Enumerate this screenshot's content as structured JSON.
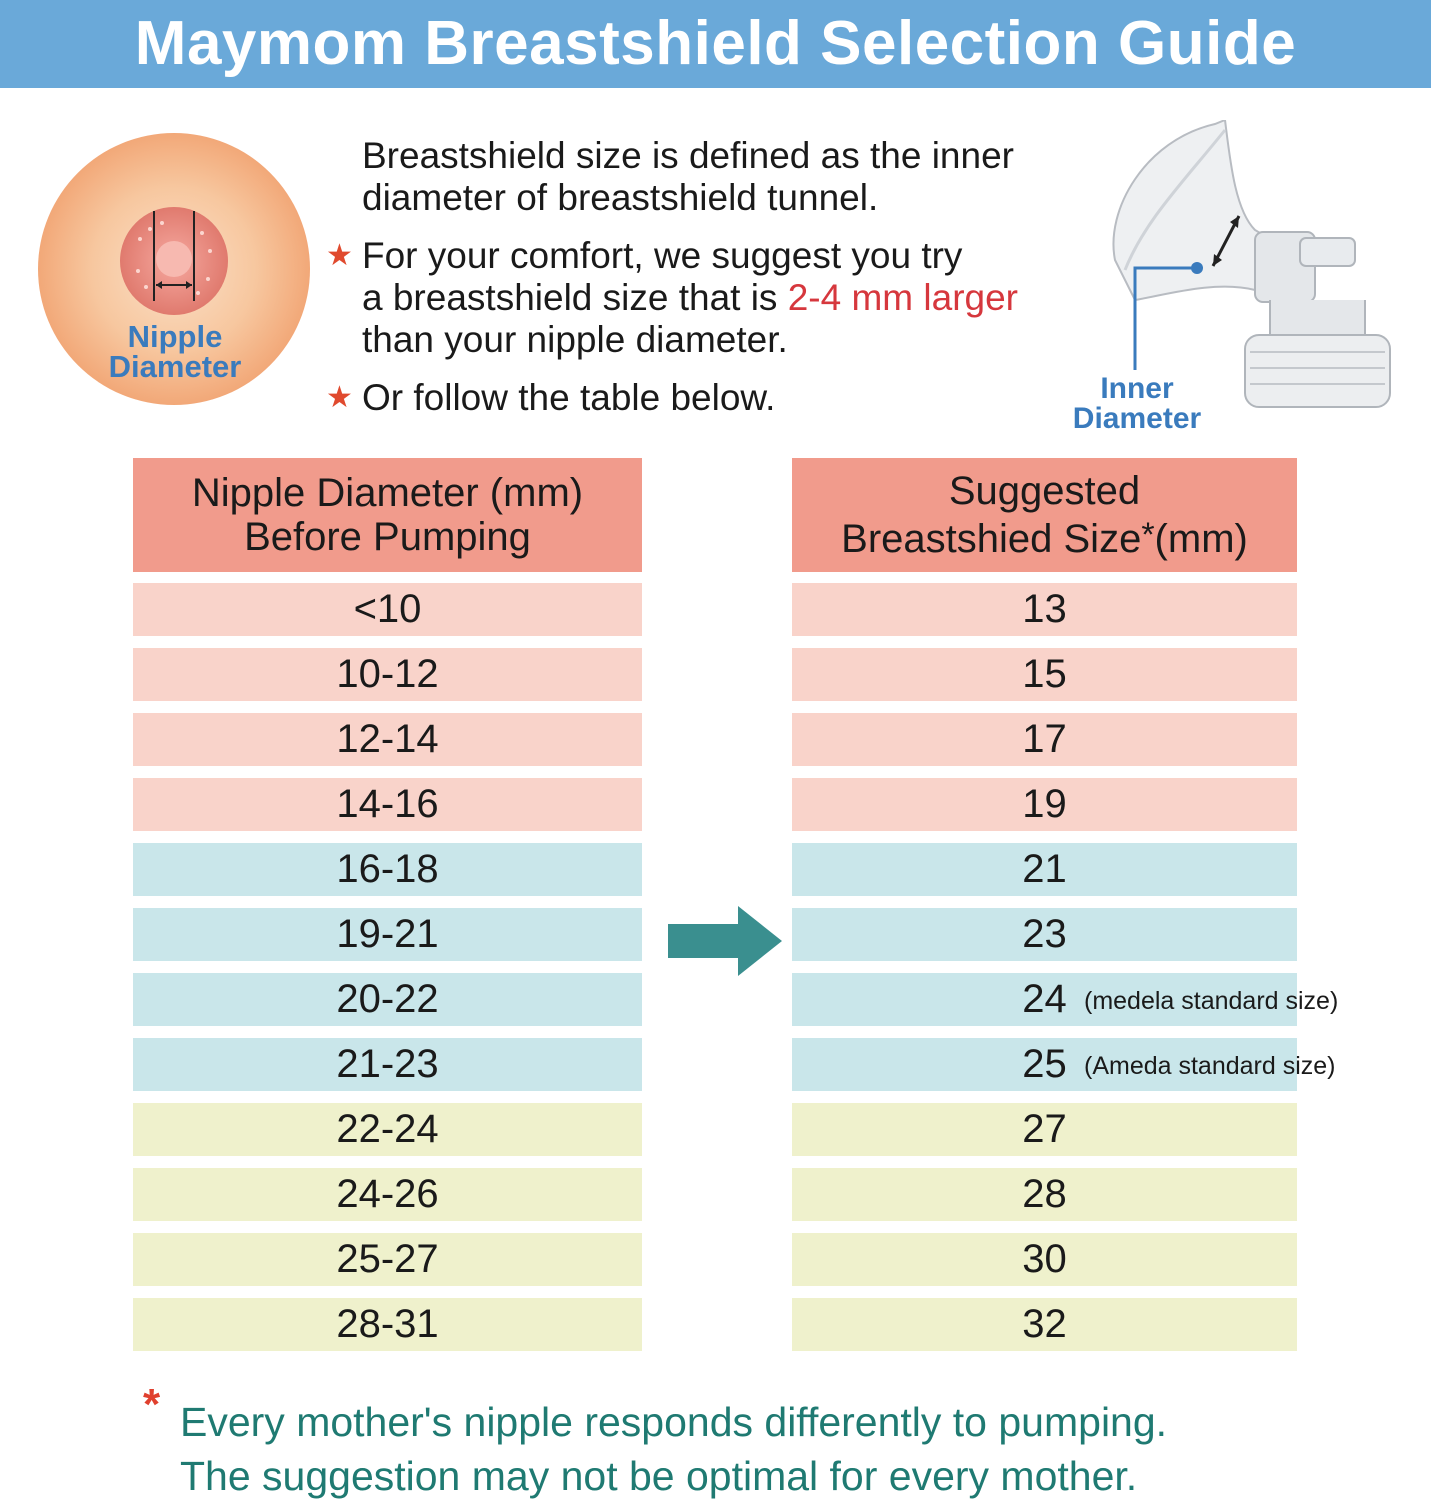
{
  "title": "Maymom Breastshield Selection Guide",
  "nipple_label": [
    "Nipple",
    "Diameter"
  ],
  "inner_label": [
    "Inner",
    "Diameter"
  ],
  "intro": {
    "line1": "Breastshield size is defined as the inner",
    "line2": "diameter of breastshield tunnel.",
    "bullet1_a": "For your comfort, we suggest you try",
    "bullet1_b": "a breastshield size that is ",
    "bullet1_highlight": "2-4 mm larger",
    "bullet1_c": "than your nipple diameter.",
    "bullet2": "Or follow the table below.",
    "star": "★"
  },
  "table": {
    "left_header": [
      "Nipple Diameter (mm)",
      "Before Pumping"
    ],
    "right_header": [
      "Suggested",
      "Breastshied Size",
      "*",
      "(mm)"
    ],
    "rows": [
      {
        "nipple": "<10",
        "size": "13",
        "group": "pink",
        "note": ""
      },
      {
        "nipple": "10-12",
        "size": "15",
        "group": "pink",
        "note": ""
      },
      {
        "nipple": "12-14",
        "size": "17",
        "group": "pink",
        "note": ""
      },
      {
        "nipple": "14-16",
        "size": "19",
        "group": "pink",
        "note": ""
      },
      {
        "nipple": "16-18",
        "size": "21",
        "group": "blue",
        "note": ""
      },
      {
        "nipple": "19-21",
        "size": "23",
        "group": "blue",
        "note": ""
      },
      {
        "nipple": "20-22",
        "size": "24",
        "group": "blue",
        "note": "(medela standard size)"
      },
      {
        "nipple": "21-23",
        "size": "25",
        "group": "blue",
        "note": "(Ameda standard size)"
      },
      {
        "nipple": "22-24",
        "size": "27",
        "group": "yellow",
        "note": ""
      },
      {
        "nipple": "24-26",
        "size": "28",
        "group": "yellow",
        "note": ""
      },
      {
        "nipple": "25-27",
        "size": "30",
        "group": "yellow",
        "note": ""
      },
      {
        "nipple": "28-31",
        "size": "32",
        "group": "yellow",
        "note": ""
      }
    ]
  },
  "footnote": {
    "star": "*",
    "line1": "Every mother's nipple responds differently to pumping.",
    "line2": "The suggestion may not be optimal for every mother."
  },
  "colors": {
    "banner": "#6aa9d9",
    "header": "#f19b8c",
    "pink": "#f9d3ca",
    "blue": "#c9e6ea",
    "yellow": "#eff1cc",
    "arrow": "#3a8f8f",
    "footnote": "#1f7a72",
    "highlight": "#d6373d"
  }
}
